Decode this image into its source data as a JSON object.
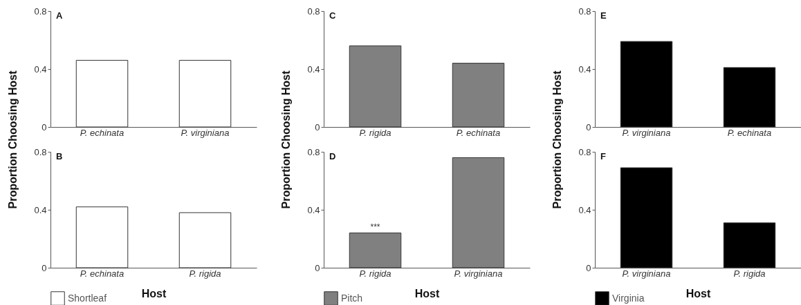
{
  "chart_data": [
    {
      "type": "bar",
      "title": "A",
      "ylabel": "Proportion Choosing Host",
      "categories": [
        "P. echinata",
        "P. virginiana"
      ],
      "series": [
        {
          "color": "#ffffff",
          "values": [
            0.46,
            0.46
          ]
        }
      ],
      "ylim": [
        0,
        0.8
      ],
      "yticks": [
        0,
        0.4,
        0.8
      ]
    },
    {
      "type": "bar",
      "title": "C",
      "ylabel": "Proportion Choosing Host",
      "categories": [
        "P. rigida",
        "P. echinata"
      ],
      "series": [
        {
          "color": "#808080",
          "values": [
            0.56,
            0.44
          ]
        }
      ],
      "ylim": [
        0,
        0.8
      ],
      "yticks": [
        0,
        0.4,
        0.8
      ]
    },
    {
      "type": "bar",
      "title": "E",
      "ylabel": "Proportion Choosing Host",
      "categories": [
        "P. virginiana",
        "P. echinata"
      ],
      "series": [
        {
          "color": "#000000",
          "values": [
            0.59,
            0.41
          ]
        }
      ],
      "ylim": [
        0,
        0.8
      ],
      "yticks": [
        0,
        0.4,
        0.8
      ]
    },
    {
      "type": "bar",
      "title": "B",
      "xlabel": "Host",
      "categories": [
        "P. echinata",
        "P. rigida"
      ],
      "series": [
        {
          "name": "Shortleaf",
          "color": "#ffffff",
          "values": [
            0.42,
            0.38
          ]
        }
      ],
      "ylim": [
        0,
        0.8
      ],
      "yticks": [
        0,
        0.4,
        0.8
      ],
      "legend": "bottom left"
    },
    {
      "type": "bar",
      "title": "D",
      "xlabel": "Host",
      "categories": [
        "P. rigida",
        "P. virginiana"
      ],
      "series": [
        {
          "name": "Pitch",
          "color": "#808080",
          "values": [
            0.24,
            0.76
          ]
        }
      ],
      "ylim": [
        0,
        0.8
      ],
      "yticks": [
        0,
        0.4,
        0.8
      ],
      "legend": "bottom left",
      "annotations": [
        {
          "text": "***",
          "x": "P. rigida",
          "y": 0.24
        }
      ]
    },
    {
      "type": "bar",
      "title": "F",
      "xlabel": "Host",
      "categories": [
        "P. virginiana",
        "P. rigida"
      ],
      "series": [
        {
          "name": "Virginia",
          "color": "#000000",
          "values": [
            0.69,
            0.31
          ]
        }
      ],
      "ylim": [
        0,
        0.8
      ],
      "yticks": [
        0,
        0.4,
        0.8
      ],
      "legend": "bottom left"
    }
  ]
}
